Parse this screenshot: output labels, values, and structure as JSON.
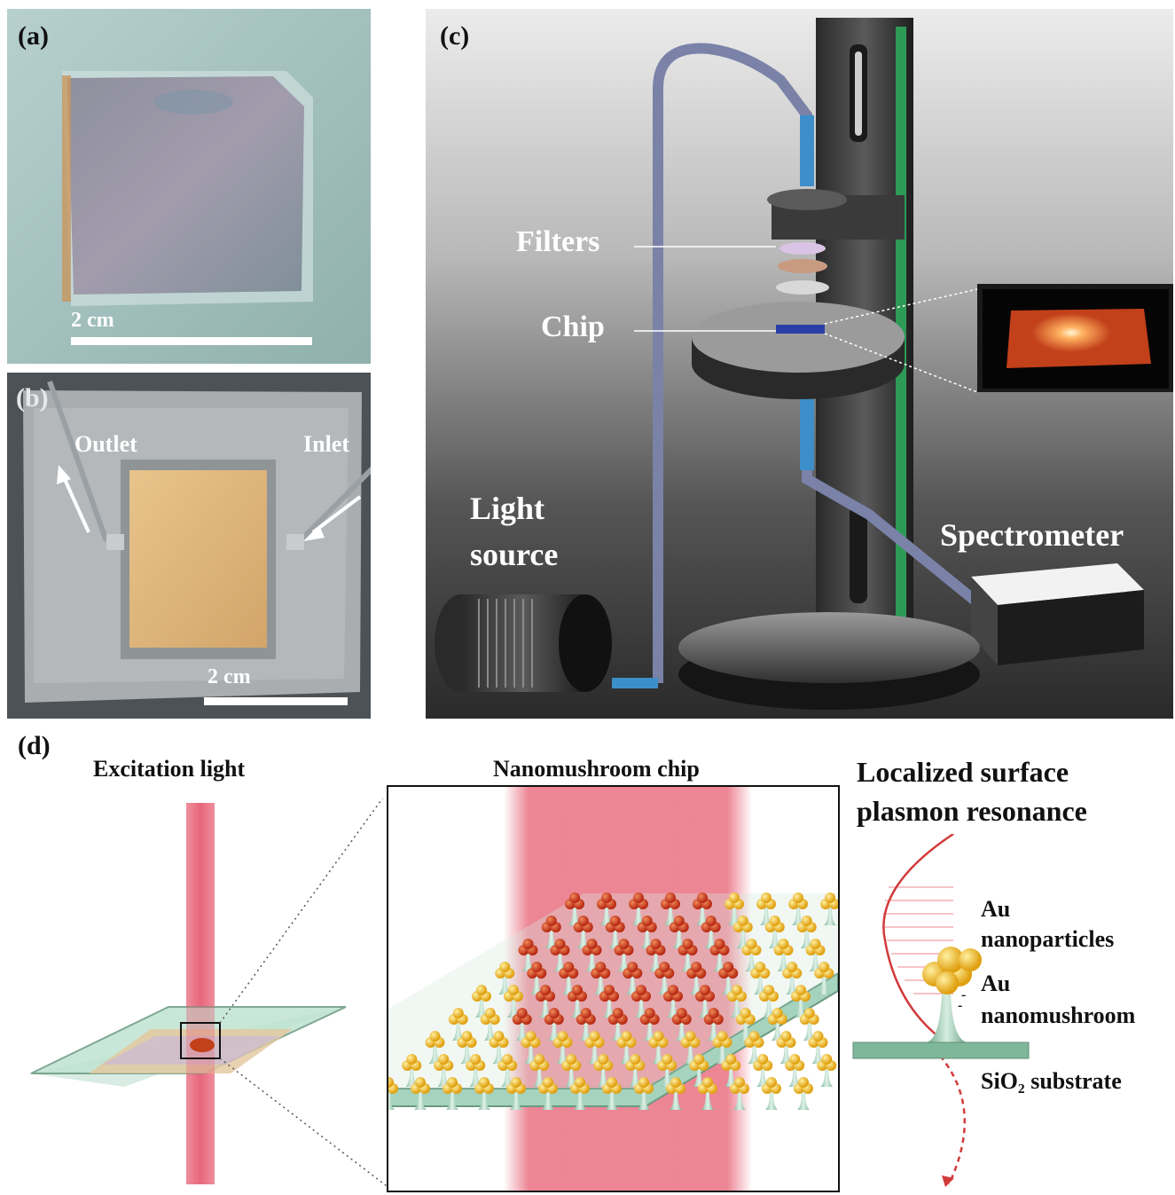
{
  "panel_a": {
    "letter": "(a)",
    "scale": "2 cm"
  },
  "panel_b": {
    "letter": "(b)",
    "outlet": "Outlet",
    "inlet": "Inlet",
    "scale": "2 cm"
  },
  "panel_c": {
    "letter": "(c)",
    "filters": "Filters",
    "chip": "Chip",
    "light_source_1": "Light",
    "light_source_2": "source",
    "spectrometer": "Spectrometer"
  },
  "panel_d": {
    "letter": "(d)",
    "excitation": "Excitation light",
    "chip_title": "Nanomushroom chip",
    "lspr_1": "Localized surface",
    "lspr_2": "plasmon resonance",
    "au_np_1": "Au",
    "au_np_2": "nanoparticles",
    "au_nm_1": "Au",
    "au_nm_2": "nanomushroom",
    "substrate": "SiO₂ substrate"
  },
  "colors": {
    "beam": "#e8677a",
    "gold": "#f2b824",
    "red_np": "#d9381f",
    "substrate": "#7fb79a",
    "tube": "#3d8fc9",
    "rail": "#2e9a55"
  }
}
